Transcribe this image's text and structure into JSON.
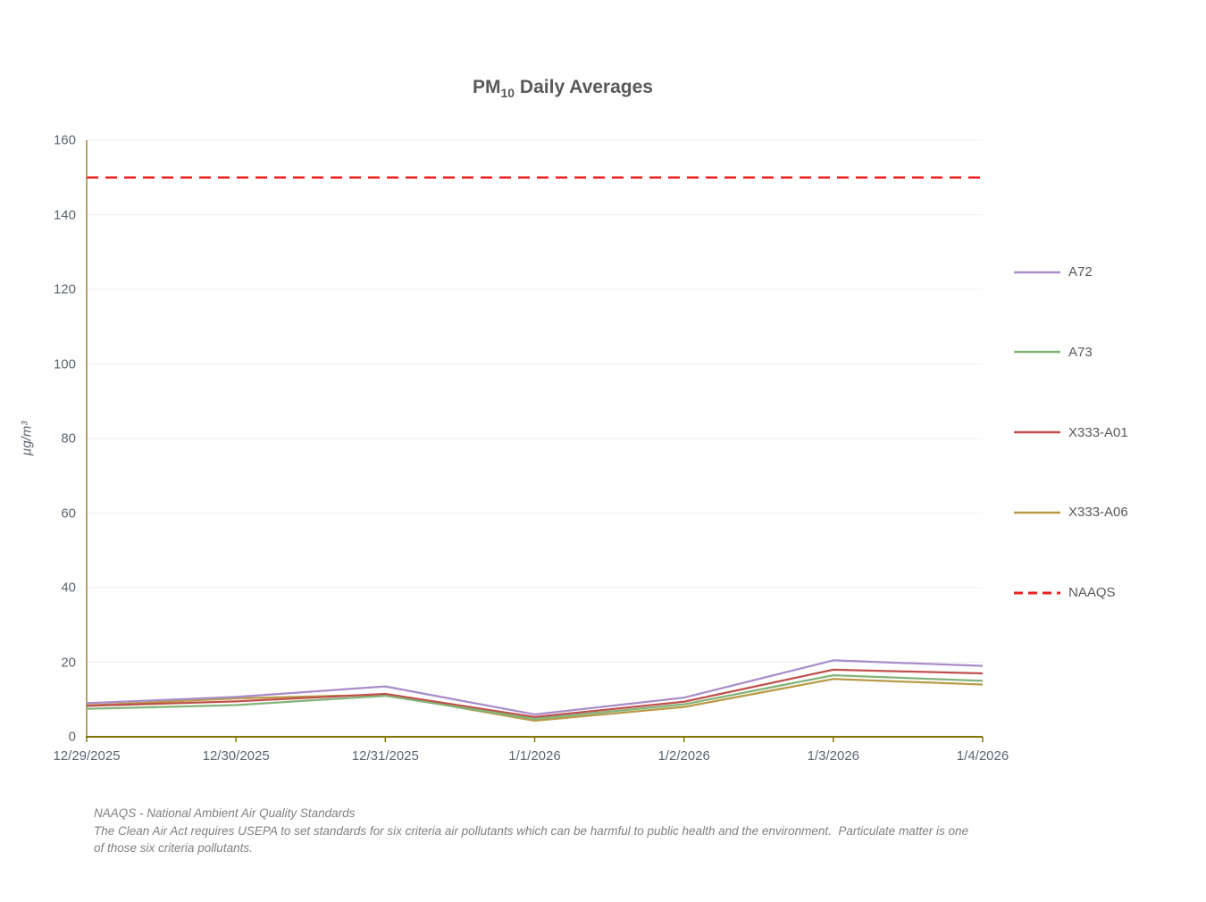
{
  "title": {
    "prefix": "PM",
    "subscript": "10",
    "suffix": " Daily Averages"
  },
  "y_axis": {
    "label": "µg/m³",
    "ticks": [
      0,
      20,
      40,
      60,
      80,
      100,
      120,
      140,
      160
    ]
  },
  "chart_data": {
    "type": "line",
    "title": "PM10 Daily Averages",
    "xlabel": "",
    "ylabel": "µg/m³",
    "ylim": [
      0,
      160
    ],
    "grid": true,
    "legend_position": "right",
    "categories": [
      "12/29/2025",
      "12/30/2025",
      "12/31/2025",
      "1/1/2026",
      "1/2/2026",
      "1/3/2026",
      "1/4/2026"
    ],
    "series": [
      {
        "name": "A72",
        "color": "#a98cc8",
        "values": [
          9.0,
          10.7,
          13.5,
          6.0,
          10.5,
          20.5,
          19.0
        ]
      },
      {
        "name": "A73",
        "color": "#82b378",
        "values": [
          7.5,
          8.5,
          11.0,
          4.8,
          8.7,
          16.5,
          15.0
        ]
      },
      {
        "name": "X333-A01",
        "color": "#c0504d",
        "values": [
          8.3,
          9.5,
          11.5,
          5.3,
          9.4,
          18.0,
          17.0
        ]
      },
      {
        "name": "X333-A06",
        "color": "#b99a47",
        "values": [
          8.4,
          10.3,
          11.3,
          4.3,
          8.0,
          15.5,
          14.0
        ]
      }
    ],
    "reference_line": {
      "name": "NAAQS",
      "value": 150,
      "color": "#f02020",
      "dashed": true
    }
  },
  "style_colors": {
    "gridline": "#efefef",
    "y_axis_line": "#b5a36b",
    "x_axis_line": "#847400",
    "tick_label": "#5b6570"
  },
  "footer": {
    "line1": "NAAQS - National Ambient Air Quality Standards",
    "line2": "The Clean Air Act requires USEPA to set standards for six criteria air pollutants which can be harmful to public health and the environment.  Particulate matter is one",
    "line3": "of those six criteria pollutants."
  }
}
